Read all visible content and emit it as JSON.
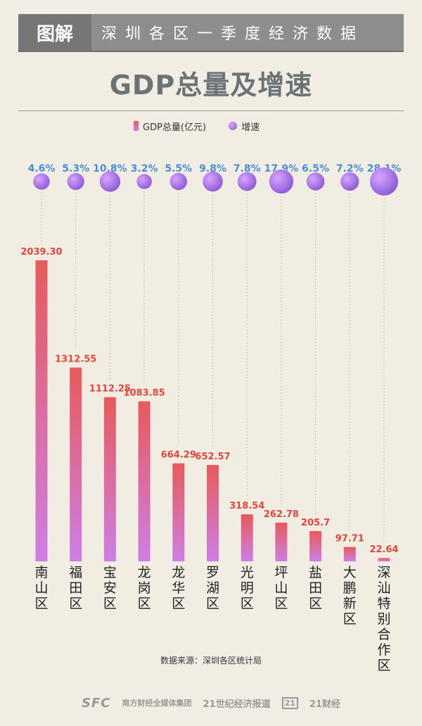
{
  "header": {
    "tag": "图解",
    "subtitle": "深圳各区一季度经济数据"
  },
  "legend": {
    "gdp_label": "GDP总量(亿元)",
    "growth_label": "增速"
  },
  "source": "数据来源：深圳各区统计局",
  "footer": {
    "logo1": "SFC",
    "group": "南方财经全媒体集团",
    "brand2": "21世纪经济报道",
    "brand3_mark": "21",
    "brand3": "21财经"
  },
  "colors": {
    "bar_top": "#e85a5a",
    "bar_bottom": "#ce7ee6",
    "value_label": "#e0463c",
    "growth_label": "#4a8ed6",
    "bubble_light": "#d8a4ff",
    "bubble_dark": "#8b5bd6",
    "axis_text": "#222222"
  },
  "chart_data": {
    "type": "bar",
    "title": "GDP总量及增速",
    "categories": [
      "南山区",
      "福田区",
      "宝安区",
      "龙岗区",
      "龙华区",
      "罗湖区",
      "光明区",
      "坪山区",
      "盐田区",
      "大鹏新区",
      "深汕特别合作区"
    ],
    "series": [
      {
        "name": "GDP总量(亿元)",
        "values": [
          2039.3,
          1312.55,
          1112.25,
          1083.85,
          664.29,
          652.57,
          318.54,
          262.78,
          205.7,
          97.71,
          22.64
        ],
        "value_labels": [
          "2039.30",
          "1312.55",
          "1112.25",
          "1083.85",
          "664.29",
          "652.57",
          "318.54",
          "262.78",
          "205.7",
          "97.71",
          "22.64"
        ]
      },
      {
        "name": "增速",
        "values": [
          4.6,
          5.3,
          10.8,
          3.2,
          5.5,
          9.8,
          7.8,
          17.9,
          6.5,
          7.2,
          28.1
        ],
        "unit": "%",
        "display": "bubble"
      }
    ],
    "ylim": [
      0,
      2039.3
    ],
    "grid": false,
    "legend": "top-center"
  }
}
